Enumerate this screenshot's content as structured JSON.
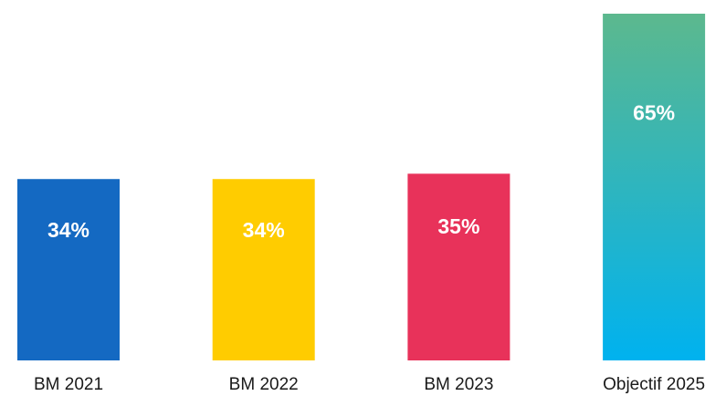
{
  "chart_data": {
    "type": "bar",
    "categories": [
      "BM 2021",
      "BM 2022",
      "BM 2023",
      "Objectif 2025"
    ],
    "values": [
      34,
      34,
      35,
      65
    ],
    "value_labels": [
      "34%",
      "34%",
      "35%",
      "65%"
    ],
    "colors": [
      "#1469c2",
      "#ffcc00",
      "#e8325a",
      [
        "#5cb88e",
        "#00b2ef"
      ]
    ],
    "ylim": [
      0,
      65
    ],
    "grid": false
  }
}
